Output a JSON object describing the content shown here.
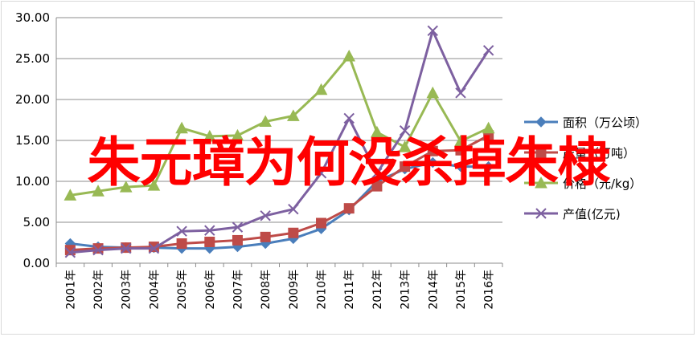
{
  "overlay_text": "朱元璋为何没杀掉朱棣",
  "chart_data": {
    "type": "line",
    "categories": [
      "2001年",
      "2002年",
      "2003年",
      "2004年",
      "2005年",
      "2006年",
      "2007年",
      "2008年",
      "2009年",
      "2010年",
      "2011年",
      "2012年",
      "2013年",
      "2014年",
      "2015年",
      "2016年"
    ],
    "ylim": [
      0,
      30
    ],
    "yticks": [
      "0.00",
      "5.00",
      "10.00",
      "15.00",
      "20.00",
      "25.00",
      "30.00"
    ],
    "grid": "horizontal",
    "legend_position": "right",
    "series": [
      {
        "name": "面积（万公顷）",
        "color": "#4a7ebb",
        "marker": "diamond",
        "values": [
          2.4,
          2.0,
          1.9,
          1.9,
          1.8,
          1.8,
          2.0,
          2.4,
          3.0,
          4.2,
          6.5,
          10.0,
          11.5,
          12.3,
          11.8,
          11.8
        ]
      },
      {
        "name": "产量（万吨）",
        "color": "#be4b48",
        "marker": "square",
        "values": [
          1.6,
          1.8,
          1.9,
          2.0,
          2.4,
          2.6,
          2.8,
          3.2,
          3.7,
          4.9,
          6.7,
          9.4,
          11.8,
          13.7,
          13.8,
          15.6
        ]
      },
      {
        "name": "价格（元/kg）",
        "color": "#98b954",
        "marker": "triangle",
        "values": [
          8.3,
          8.8,
          9.3,
          9.5,
          16.5,
          15.5,
          15.6,
          17.3,
          18.0,
          21.2,
          25.3,
          16.0,
          14.2,
          20.8,
          14.9,
          16.5
        ]
      },
      {
        "name": "产值(亿元)",
        "color": "#7d60a0",
        "marker": "x",
        "values": [
          1.3,
          1.6,
          1.8,
          1.8,
          3.9,
          4.0,
          4.4,
          5.8,
          6.6,
          11.0,
          17.7,
          11.0,
          16.2,
          28.4,
          20.8,
          26.0
        ]
      }
    ]
  }
}
